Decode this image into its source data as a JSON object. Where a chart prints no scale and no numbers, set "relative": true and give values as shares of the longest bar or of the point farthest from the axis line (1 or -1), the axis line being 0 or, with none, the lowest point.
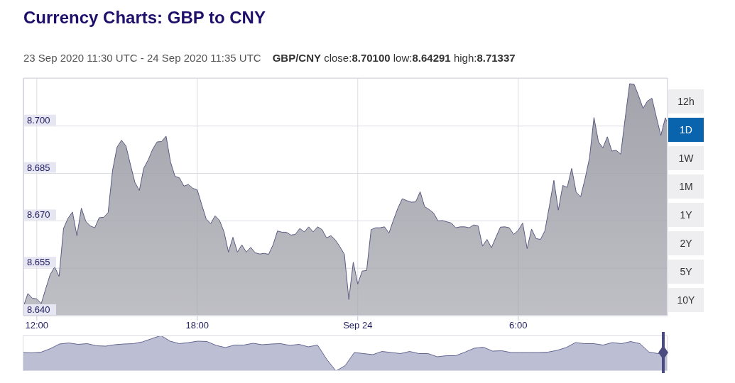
{
  "chart_data": [
    {
      "type": "area",
      "title": "Currency Charts: GBP to CNY",
      "subtitle": "23 Sep 2020 11:30 UTC - 24 Sep 2020 11:35 UTC",
      "annotations": [
        "GBP/CNY close:8.70100 low:8.64291 high:8.71337",
        "12h",
        "1D",
        "1W",
        "1M",
        "1Y",
        "2Y",
        "5Y",
        "10Y"
      ],
      "x": [
        "2020-09-23T11:30",
        "2020-09-23T11:40",
        "2020-09-23T11:50",
        "2020-09-23T12:00",
        "2020-09-23T12:10",
        "2020-09-23T12:20",
        "2020-09-23T12:30",
        "2020-09-23T12:40",
        "2020-09-23T12:50",
        "2020-09-23T13:00",
        "2020-09-23T13:10",
        "2020-09-23T13:20",
        "2020-09-23T13:30",
        "2020-09-23T13:40",
        "2020-09-23T13:50",
        "2020-09-23T14:00",
        "2020-09-23T14:10",
        "2020-09-23T14:20",
        "2020-09-23T14:30",
        "2020-09-23T14:40",
        "2020-09-23T14:50",
        "2020-09-23T15:00",
        "2020-09-23T15:10",
        "2020-09-23T15:20",
        "2020-09-23T15:30",
        "2020-09-23T15:40",
        "2020-09-23T15:50",
        "2020-09-23T16:00",
        "2020-09-23T16:10",
        "2020-09-23T16:20",
        "2020-09-23T16:30",
        "2020-09-23T16:40",
        "2020-09-23T16:50",
        "2020-09-23T17:00",
        "2020-09-23T17:10",
        "2020-09-23T17:20",
        "2020-09-23T17:30",
        "2020-09-23T17:40",
        "2020-09-23T17:50",
        "2020-09-23T18:00",
        "2020-09-23T18:10",
        "2020-09-23T18:20",
        "2020-09-23T18:30",
        "2020-09-23T18:40",
        "2020-09-23T18:50",
        "2020-09-23T19:00",
        "2020-09-23T19:10",
        "2020-09-23T19:20",
        "2020-09-23T19:30",
        "2020-09-23T19:40",
        "2020-09-23T19:50",
        "2020-09-23T20:00",
        "2020-09-23T20:10",
        "2020-09-23T20:20",
        "2020-09-23T20:30",
        "2020-09-23T20:40",
        "2020-09-23T20:50",
        "2020-09-23T21:00",
        "2020-09-23T21:10",
        "2020-09-23T21:20",
        "2020-09-23T21:30",
        "2020-09-23T21:40",
        "2020-09-23T21:50",
        "2020-09-23T22:00",
        "2020-09-23T22:10",
        "2020-09-23T22:20",
        "2020-09-23T22:30",
        "2020-09-23T22:40",
        "2020-09-23T22:50",
        "2020-09-23T23:00",
        "2020-09-23T23:10",
        "2020-09-23T23:20",
        "2020-09-23T23:30",
        "2020-09-23T23:40",
        "2020-09-23T23:50",
        "2020-09-24T00:00",
        "2020-09-24T00:10",
        "2020-09-24T00:20",
        "2020-09-24T00:30",
        "2020-09-24T00:40",
        "2020-09-24T00:50",
        "2020-09-24T01:00",
        "2020-09-24T01:10",
        "2020-09-24T01:20",
        "2020-09-24T01:30",
        "2020-09-24T01:40",
        "2020-09-24T01:50",
        "2020-09-24T02:00",
        "2020-09-24T02:10",
        "2020-09-24T02:20",
        "2020-09-24T02:30",
        "2020-09-24T02:40",
        "2020-09-24T02:50",
        "2020-09-24T03:00",
        "2020-09-24T03:10",
        "2020-09-24T03:20",
        "2020-09-24T03:30",
        "2020-09-24T03:40",
        "2020-09-24T03:50",
        "2020-09-24T04:00",
        "2020-09-24T04:10",
        "2020-09-24T04:20",
        "2020-09-24T04:30",
        "2020-09-24T04:40",
        "2020-09-24T04:50",
        "2020-09-24T05:00",
        "2020-09-24T05:10",
        "2020-09-24T05:20",
        "2020-09-24T05:30",
        "2020-09-24T05:40",
        "2020-09-24T05:50",
        "2020-09-24T06:00",
        "2020-09-24T06:10",
        "2020-09-24T06:20",
        "2020-09-24T06:30",
        "2020-09-24T06:40",
        "2020-09-24T06:50",
        "2020-09-24T07:00",
        "2020-09-24T07:10",
        "2020-09-24T07:20",
        "2020-09-24T07:30",
        "2020-09-24T07:40",
        "2020-09-24T07:50",
        "2020-09-24T08:00",
        "2020-09-24T08:10",
        "2020-09-24T08:20",
        "2020-09-24T08:30",
        "2020-09-24T08:40",
        "2020-09-24T08:50",
        "2020-09-24T09:00",
        "2020-09-24T09:10",
        "2020-09-24T09:20",
        "2020-09-24T09:30",
        "2020-09-24T09:40",
        "2020-09-24T09:50",
        "2020-09-24T10:00",
        "2020-09-24T10:10",
        "2020-09-24T10:20",
        "2020-09-24T10:30",
        "2020-09-24T10:40",
        "2020-09-24T10:50",
        "2020-09-24T11:00",
        "2020-09-24T11:10",
        "2020-09-24T11:20",
        "2020-09-24T11:30",
        "2020-09-24T11:35"
      ],
      "values": [
        8.6429,
        8.647,
        8.6455,
        8.6453,
        8.6438,
        8.6485,
        8.653,
        8.6554,
        8.6524,
        8.6676,
        8.6708,
        8.6728,
        8.6653,
        8.674,
        8.6698,
        8.6684,
        8.6678,
        8.671,
        8.6711,
        8.6726,
        8.686,
        8.6933,
        8.6955,
        8.6937,
        8.6878,
        8.6822,
        8.6796,
        8.6867,
        8.6893,
        8.6927,
        8.695,
        8.6951,
        8.6968,
        8.6886,
        8.6841,
        8.6836,
        8.681,
        8.6815,
        8.6803,
        8.6798,
        8.6751,
        8.6706,
        8.6691,
        8.6716,
        8.6701,
        8.6665,
        8.6601,
        8.6648,
        8.6601,
        8.6624,
        8.6601,
        8.6616,
        8.6599,
        8.6595,
        8.6597,
        8.6594,
        8.6624,
        8.6668,
        8.6664,
        8.6664,
        8.6655,
        8.6657,
        8.6676,
        8.6665,
        8.6681,
        8.6665,
        8.6681,
        8.6672,
        8.6646,
        8.6653,
        8.6639,
        8.6618,
        8.6594,
        8.6451,
        8.6569,
        8.65,
        8.6541,
        8.6543,
        8.6672,
        8.6678,
        8.6678,
        8.6681,
        8.6661,
        8.6702,
        8.674,
        8.677,
        8.6764,
        8.6759,
        8.676,
        8.6792,
        8.6745,
        8.6736,
        8.6725,
        8.67,
        8.6701,
        8.6697,
        8.6693,
        8.6678,
        8.6681,
        8.6681,
        8.6678,
        8.6687,
        8.6684,
        8.662,
        8.6641,
        8.6615,
        8.6648,
        8.668,
        8.6681,
        8.6678,
        8.6657,
        8.667,
        8.6693,
        8.6612,
        8.6674,
        8.6644,
        8.6641,
        8.6669,
        8.6747,
        8.6828,
        8.6734,
        8.6812,
        8.6806,
        8.6866,
        8.6791,
        8.6776,
        8.6833,
        8.6899,
        8.7027,
        8.695,
        8.6931,
        8.6966,
        8.6921,
        8.6923,
        8.6911,
        8.7025,
        8.7134,
        8.7132,
        8.7096,
        8.7056,
        8.7079,
        8.7088,
        8.7028,
        8.697,
        8.7026,
        8.701
      ],
      "color": "#a3a3ac",
      "xlim": [
        "2020-09-23T11:30",
        "2020-09-24T11:35"
      ],
      "xticks": [
        {
          "value": "2020-09-23T12:00",
          "label": "12:00"
        },
        {
          "value": "2020-09-23T18:00",
          "label": "18:00"
        },
        {
          "value": "2020-09-24T00:00",
          "label": "Sep 24"
        },
        {
          "value": "2020-09-24T06:00",
          "label": "6:00"
        }
      ],
      "ylim": [
        8.64,
        8.7152
      ],
      "yticks": [
        {
          "value": 8.64,
          "label": "8.640"
        },
        {
          "value": 8.655,
          "label": "8.655"
        },
        {
          "value": 8.67,
          "label": "8.670"
        },
        {
          "value": 8.685,
          "label": "8.685"
        },
        {
          "value": 8.7,
          "label": "8.700"
        }
      ],
      "grid": true
    },
    {
      "type": "area",
      "relative": true,
      "color": "#bcbfd3",
      "categories": [
        null,
        null,
        null,
        null,
        null,
        null,
        null,
        null,
        null,
        null,
        null,
        null,
        null,
        null,
        null,
        null,
        null,
        null,
        null,
        null,
        null,
        null,
        null,
        null,
        null,
        null,
        null,
        null,
        null,
        null,
        null,
        null,
        null,
        null,
        null,
        null,
        null,
        null,
        null,
        null,
        null,
        null,
        null,
        null,
        null,
        null,
        null,
        null,
        null,
        null,
        null,
        null,
        null,
        null,
        null,
        null,
        null,
        null,
        null,
        null,
        null,
        null,
        null,
        null,
        null,
        null,
        null,
        null,
        null,
        null,
        null
      ],
      "values": [
        0.52,
        0.51,
        0.53,
        0.63,
        0.76,
        0.79,
        0.75,
        0.77,
        0.71,
        0.7,
        0.74,
        0.76,
        0.77,
        0.82,
        0.91,
        1,
        0.84,
        0.77,
        0.8,
        0.84,
        0.83,
        0.72,
        0.66,
        0.73,
        0.73,
        0.78,
        0.74,
        0.76,
        0.77,
        0.72,
        0.75,
        0.68,
        0.73,
        0.33,
        0,
        0.15,
        0.52,
        0.49,
        0.46,
        0.55,
        0.52,
        0.49,
        0.55,
        0.49,
        0.49,
        0.4,
        0.43,
        0.43,
        0.53,
        0.64,
        0.67,
        0.56,
        0.57,
        0.52,
        0.52,
        0.52,
        0.52,
        0.53,
        0.58,
        0.66,
        0.8,
        0.77,
        0.77,
        0.73,
        0.8,
        0.77,
        0.83,
        0.77,
        0.53,
        0.49,
        0.51
      ]
    }
  ]
}
